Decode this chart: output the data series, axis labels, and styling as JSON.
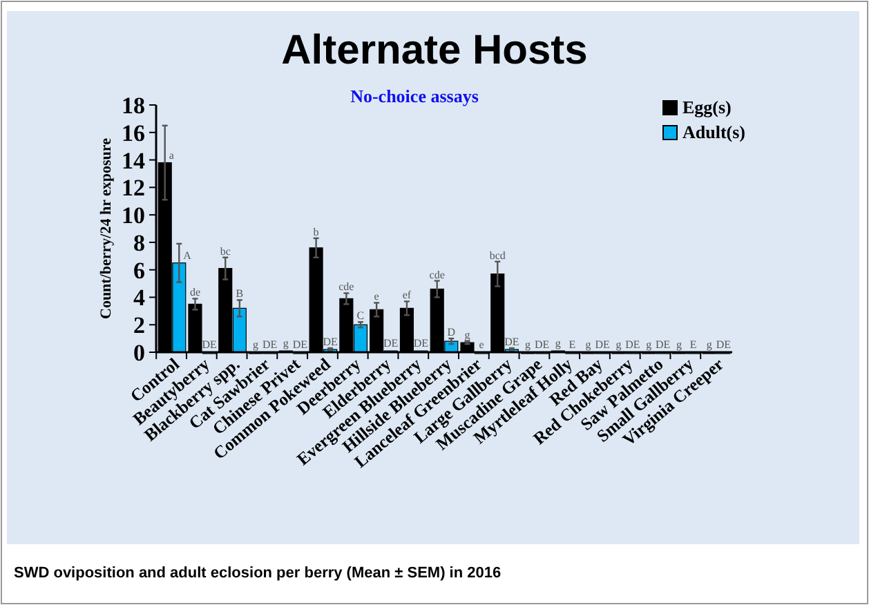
{
  "chart_data": {
    "type": "bar",
    "title": "Alternate Hosts",
    "subtitle": "No-choice assays",
    "ylabel": "Count/berry/24 hr exposure",
    "categories": [
      "Control",
      "Beautyberry",
      "Blackberry spp.",
      "Cat Sawbrier",
      "Chinese Privet",
      "Common Pokeweed",
      "Deerberry",
      "Elderberry",
      "Evergreen Blueberry",
      "Hillside Blueberry",
      "Lanceleaf Greenbrier",
      "Large Gallberry",
      "Muscadine Grape",
      "Myrtleleaf Holly",
      "Red Bay",
      "Red Chokeberry",
      "Saw Palmetto",
      "Small Gallberry",
      "Virginia Creeper"
    ],
    "series": [
      {
        "name": "Egg(s)",
        "color": "#000000",
        "values": [
          13.8,
          3.5,
          6.1,
          0,
          0.1,
          7.6,
          3.9,
          3.1,
          3.2,
          4.6,
          0.7,
          5.7,
          0,
          0.1,
          0,
          0,
          0,
          0,
          0
        ],
        "errors": [
          2.7,
          0.4,
          0.8,
          null,
          null,
          0.7,
          0.4,
          0.5,
          0.5,
          0.6,
          0.1,
          0.9,
          null,
          null,
          null,
          null,
          null,
          null,
          null
        ],
        "value_labels": [
          "a",
          "de",
          "bc",
          "g",
          "g",
          "b",
          "cde",
          "e",
          "ef",
          "cde",
          "g",
          "bcd",
          "g",
          "g",
          "g",
          "g",
          "g",
          "g",
          "g"
        ]
      },
      {
        "name": "Adult(s)",
        "color": "#00b0f0",
        "values": [
          6.5,
          0,
          3.2,
          0,
          0,
          0.2,
          2.0,
          0.1,
          0.1,
          0.8,
          0,
          0.2,
          0,
          0,
          0,
          0,
          0,
          0,
          0
        ],
        "errors": [
          1.4,
          null,
          0.6,
          null,
          null,
          0.1,
          0.2,
          null,
          null,
          0.2,
          null,
          0.1,
          null,
          null,
          null,
          null,
          null,
          null,
          null
        ],
        "value_labels": [
          "A",
          "DE",
          "B",
          "DE",
          "DE",
          "DE",
          "C",
          "DE",
          "DE",
          "D",
          "e",
          "DE",
          "DE",
          "E",
          "DE",
          "DE",
          "DE",
          "E",
          "DE"
        ]
      }
    ],
    "ylim": [
      0,
      18
    ],
    "yticks": [
      0,
      2,
      4,
      6,
      8,
      10,
      12,
      14,
      16,
      18
    ],
    "grid": false,
    "legend": "top right",
    "annotations": [
      "SWD oviposition and adult eclosion per berry (Mean ± SEM) in 2016"
    ]
  }
}
